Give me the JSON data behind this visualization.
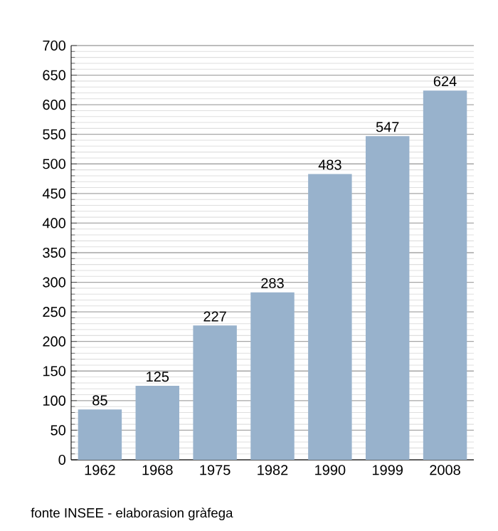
{
  "chart_data": {
    "type": "bar",
    "categories": [
      "1962",
      "1968",
      "1975",
      "1982",
      "1990",
      "1999",
      "2008"
    ],
    "values": [
      85,
      125,
      227,
      283,
      483,
      547,
      624
    ],
    "color": "#98b2cc",
    "ylim": [
      0,
      700
    ],
    "yticks": [
      0,
      50,
      100,
      150,
      200,
      250,
      300,
      350,
      400,
      450,
      500,
      550,
      600,
      650,
      700
    ],
    "grid": true,
    "data_labels": true,
    "annotations": [
      "fonte INSEE - elaborasion gràfega"
    ]
  }
}
